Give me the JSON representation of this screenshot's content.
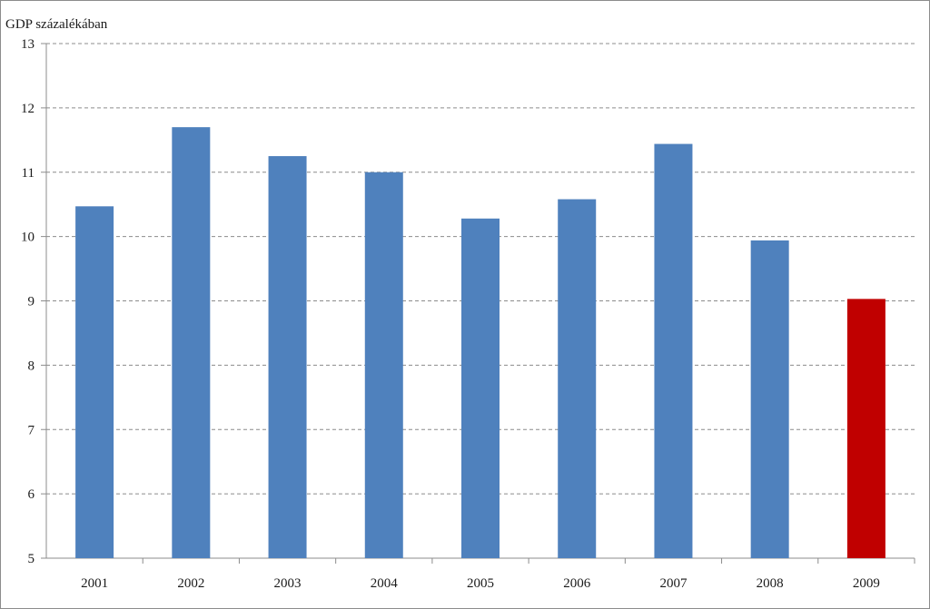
{
  "chart_data": {
    "type": "bar",
    "title": "",
    "xlabel": "",
    "ylabel": "GDP százalékában",
    "categories": [
      "2001",
      "2002",
      "2003",
      "2004",
      "2005",
      "2006",
      "2007",
      "2008",
      "2009"
    ],
    "values": [
      10.47,
      11.7,
      11.25,
      11.0,
      10.28,
      10.58,
      11.44,
      9.94,
      9.03
    ],
    "bar_colors": [
      "#4f81bd",
      "#4f81bd",
      "#4f81bd",
      "#4f81bd",
      "#4f81bd",
      "#4f81bd",
      "#4f81bd",
      "#4f81bd",
      "#c00000"
    ],
    "ylim": [
      5,
      13
    ],
    "yticks": [
      "5",
      "6",
      "7",
      "8",
      "9",
      "10",
      "11",
      "12",
      "13"
    ],
    "grid": true,
    "grid_style": "dashed",
    "legend": "none"
  }
}
